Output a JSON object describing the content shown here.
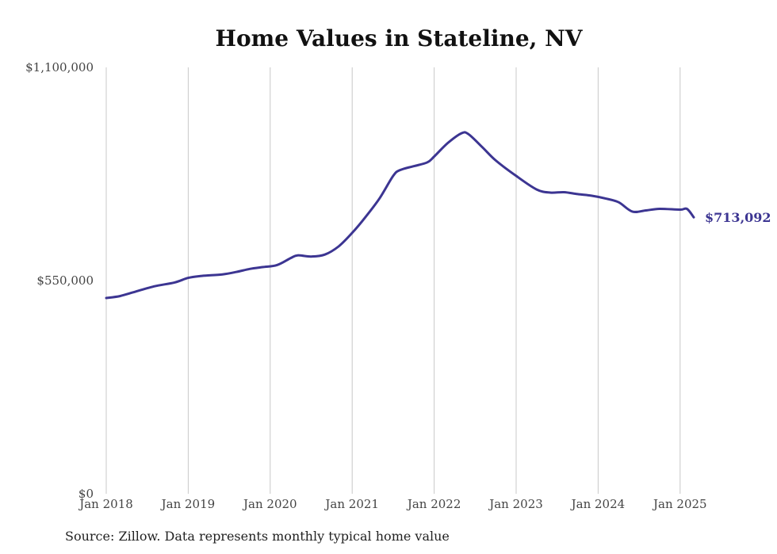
{
  "chart_data": {
    "type": "line",
    "title": "Home Values in Stateline, NV",
    "xlabel": "",
    "ylabel": "",
    "source": "Source: Zillow. Data represents monthly typical home value",
    "y_ticks": [
      {
        "value": 0,
        "label": "$0"
      },
      {
        "value": 550000,
        "label": "$550,000"
      },
      {
        "value": 1100000,
        "label": "$1,100,000"
      }
    ],
    "x_ticks": [
      {
        "value": "2018-01",
        "label": "Jan 2018"
      },
      {
        "value": "2019-01",
        "label": "Jan 2019"
      },
      {
        "value": "2020-01",
        "label": "Jan 2020"
      },
      {
        "value": "2021-01",
        "label": "Jan 2021"
      },
      {
        "value": "2022-01",
        "label": "Jan 2022"
      },
      {
        "value": "2023-01",
        "label": "Jan 2023"
      },
      {
        "value": "2024-01",
        "label": "Jan 2024"
      },
      {
        "value": "2025-01",
        "label": "Jan 2025"
      }
    ],
    "ylim": [
      0,
      1100000
    ],
    "xlim": [
      "2018-01",
      "2025-03"
    ],
    "grid": "vertical",
    "line_color": "#3c3592",
    "end_label": "$713,092",
    "series": [
      {
        "x": [
          "2018-01",
          "2018-03",
          "2018-05",
          "2018-08",
          "2018-11",
          "2019-01",
          "2019-03",
          "2019-06",
          "2019-08",
          "2019-10",
          "2019-12",
          "2020-02",
          "2020-04",
          "2020-05",
          "2020-07",
          "2020-09",
          "2020-11",
          "2021-01",
          "2021-03",
          "2021-05",
          "2021-07",
          "2021-08",
          "2021-10",
          "2021-12",
          "2022-01",
          "2022-03",
          "2022-05",
          "2022-06",
          "2022-08",
          "2022-10",
          "2023-01",
          "2023-04",
          "2023-06",
          "2023-08",
          "2023-10",
          "2023-12",
          "2024-02",
          "2024-04",
          "2024-06",
          "2024-08",
          "2024-10",
          "2025-01",
          "2025-02",
          "2025-03"
        ],
        "values": [
          505000,
          510000,
          520000,
          535000,
          545000,
          557000,
          562000,
          566000,
          572000,
          580000,
          585000,
          590000,
          608000,
          615000,
          612000,
          617000,
          638000,
          673000,
          715000,
          762000,
          820000,
          835000,
          845000,
          855000,
          870000,
          905000,
          930000,
          928000,
          895000,
          860000,
          820000,
          785000,
          777000,
          778000,
          773000,
          769000,
          762000,
          752000,
          728000,
          731000,
          735000,
          733000,
          735000,
          713092
        ]
      }
    ]
  }
}
